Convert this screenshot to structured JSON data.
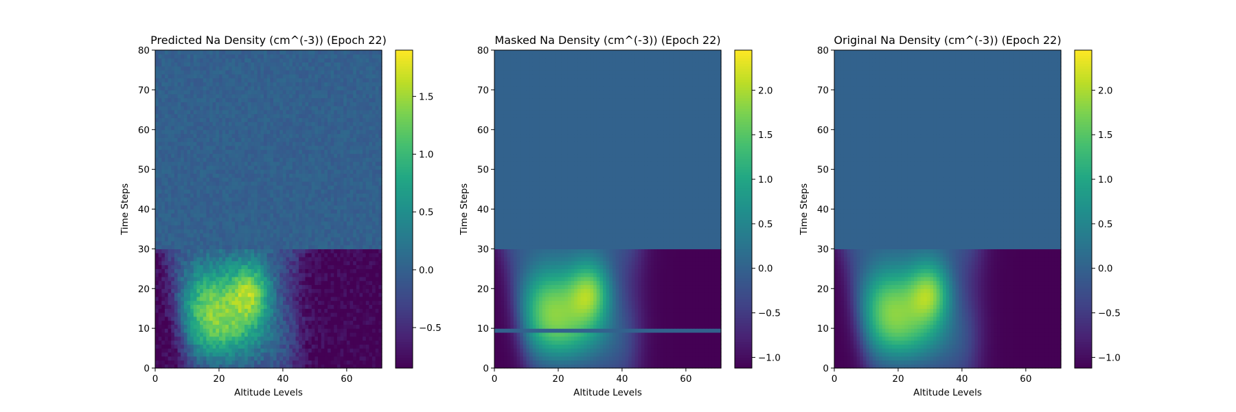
{
  "chart_data": [
    {
      "type": "heatmap",
      "title": "Predicted Na Density (cm^(-3)) (Epoch 22)",
      "xlabel": "Altitude Levels",
      "ylabel": "Time Steps",
      "xlim": [
        0,
        71
      ],
      "ylim": [
        0,
        80
      ],
      "xticks": [
        0,
        20,
        40,
        60
      ],
      "yticks": [
        0,
        10,
        20,
        30,
        40,
        50,
        60,
        70,
        80
      ],
      "colormap": "viridis",
      "colorbar": {
        "vmin": -0.85,
        "vmax": 1.9,
        "ticks": [
          -0.5,
          0.0,
          0.5,
          1.0,
          1.5
        ],
        "tick_labels": [
          "−0.5",
          "0.0",
          "0.5",
          "1.0",
          "1.5"
        ]
      },
      "masked_time_from": 30,
      "masked_value": 0.0,
      "noise": true
    },
    {
      "type": "heatmap",
      "title": "Masked Na Density (cm^(-3)) (Epoch 22)",
      "xlabel": "Altitude Levels",
      "ylabel": "Time Steps",
      "xlim": [
        0,
        71
      ],
      "ylim": [
        0,
        80
      ],
      "xticks": [
        0,
        20,
        40,
        60
      ],
      "yticks": [
        0,
        10,
        20,
        30,
        40,
        50,
        60,
        70,
        80
      ],
      "colormap": "viridis",
      "colorbar": {
        "vmin": -1.12,
        "vmax": 2.45,
        "ticks": [
          -1.0,
          -0.5,
          0.0,
          0.5,
          1.0,
          1.5,
          2.0
        ],
        "tick_labels": [
          "−1.0",
          "−0.5",
          "0.0",
          "0.5",
          "1.0",
          "1.5",
          "2.0"
        ]
      },
      "masked_time_from": 30,
      "masked_value": 0.0,
      "masked_rows": [
        9
      ],
      "noise": false
    },
    {
      "type": "heatmap",
      "title": "Original Na Density (cm^(-3)) (Epoch 22)",
      "xlabel": "Altitude Levels",
      "ylabel": "Time Steps",
      "xlim": [
        0,
        71
      ],
      "ylim": [
        0,
        80
      ],
      "xticks": [
        0,
        20,
        40,
        60
      ],
      "yticks": [
        0,
        10,
        20,
        30,
        40,
        50,
        60,
        70,
        80
      ],
      "colormap": "viridis",
      "colorbar": {
        "vmin": -1.12,
        "vmax": 2.45,
        "ticks": [
          -1.0,
          -0.5,
          0.0,
          0.5,
          1.0,
          1.5,
          2.0
        ],
        "tick_labels": [
          "−1.0",
          "−0.5",
          "0.0",
          "0.5",
          "1.0",
          "1.5",
          "2.0"
        ]
      },
      "masked_time_from": 30,
      "masked_value": 0.0,
      "noise": false
    }
  ]
}
